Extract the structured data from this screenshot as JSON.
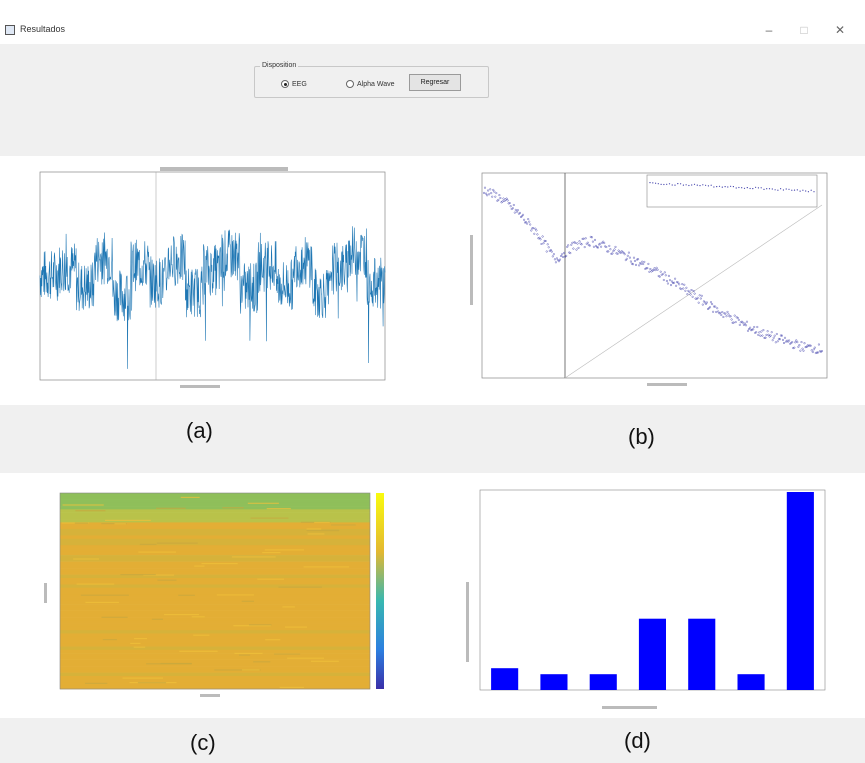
{
  "window": {
    "title": "Resultados",
    "minimize_icon": "minimize-icon",
    "maximize_icon": "maximize-icon",
    "close_icon": "close-icon"
  },
  "controls": {
    "group_label": "Disposition",
    "radio_options": [
      {
        "label": "EEG",
        "selected": true
      },
      {
        "label": "Alpha Wave",
        "selected": false
      }
    ],
    "button_label": "Regresar"
  },
  "captions": [
    "(a)",
    "(b)",
    "(c)",
    "(d)"
  ],
  "colors": {
    "signal": "#1f77b4",
    "psd_points": "#3a3aa8",
    "bars": "#0000ff",
    "background": "#f0f0f0"
  },
  "chart_data": [
    {
      "type": "line",
      "panel": "a",
      "description_visible": "raw EEG signal trace",
      "series": [
        {
          "values": [
            0,
            0.2,
            -0.35,
            0.5,
            -0.6,
            0.3,
            -0.2,
            0.45,
            -0.5,
            0.15,
            0.6,
            -0.4,
            0.25,
            -0.3,
            0.4,
            -0.55,
            0.2,
            0.7,
            -0.25,
            0.1
          ]
        }
      ],
      "ylim": [
        -1,
        1
      ],
      "grid": false
    },
    {
      "type": "scatter",
      "panel": "b",
      "series": [
        {
          "values": [
            0.95,
            0.9,
            0.82,
            0.72,
            0.58,
            0.65,
            0.68,
            0.64,
            0.6,
            0.55,
            0.5,
            0.44,
            0.38,
            0.32,
            0.27,
            0.22,
            0.18,
            0.15,
            0.12,
            0.11
          ]
        }
      ],
      "ylim": [
        0,
        1
      ],
      "inset": true
    },
    {
      "type": "heatmap",
      "panel": "c",
      "colormap": "parula",
      "colorbar": true
    },
    {
      "type": "bar",
      "panel": "d",
      "categories": [
        "",
        "",
        "",
        "",
        "",
        "",
        ""
      ],
      "values": [
        0.11,
        0.08,
        0.08,
        0.36,
        0.36,
        0.08,
        1.0
      ],
      "ylim": [
        0,
        1.0
      ]
    }
  ]
}
